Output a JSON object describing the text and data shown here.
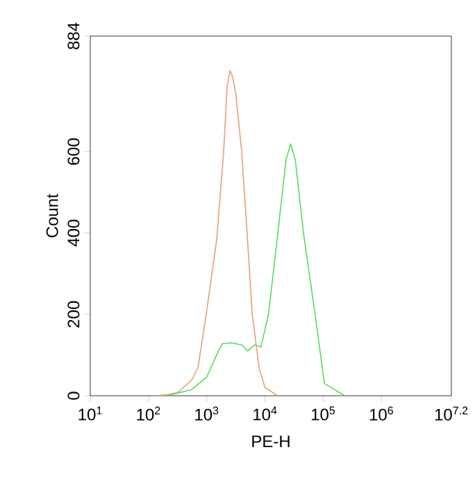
{
  "chart_data": {
    "type": "line",
    "xlabel": "PE-H",
    "ylabel": "Count",
    "log": "x",
    "marker": "none",
    "line_style": "solid",
    "xlim": [
      10,
      15848932
    ],
    "ylim": [
      0,
      884
    ],
    "xticks": [
      {
        "value": 10,
        "label": "10$^{1}$"
      },
      {
        "value": 100,
        "label": "10$^{2}$"
      },
      {
        "value": 1000,
        "label": "10$^{3}$"
      },
      {
        "value": 10000,
        "label": "10$^{4}$"
      },
      {
        "value": 100000,
        "label": "10$^{5}$"
      },
      {
        "value": 1000000,
        "label": "10$^{6}$"
      },
      {
        "value": 15848932,
        "label": "10$^{7.2}$"
      }
    ],
    "yticks": [
      0,
      200,
      400,
      600,
      884
    ],
    "series": [
      {
        "color": "#e8a070",
        "x": [
          117,
          200,
          316,
          550,
          708,
          977,
          1479,
          1950,
          2240,
          2512,
          2818,
          3162,
          3981,
          5012,
          6026,
          7943,
          10000,
          16600
        ],
        "values": [
          0,
          2,
          8,
          38,
          70,
          200,
          383,
          600,
          760,
          800,
          780,
          740,
          600,
          383,
          200,
          68,
          20,
          0
        ]
      },
      {
        "color": "#55dd55",
        "x": [
          204,
          550,
          1000,
          1585,
          1862,
          2692,
          3981,
          5012,
          6607,
          8511,
          11480,
          16600,
          22900,
          27540,
          33110,
          45710,
          72440,
          104700,
          234400
        ],
        "values": [
          0,
          15,
          46,
          110,
          128,
          130,
          125,
          110,
          125,
          120,
          200,
          400,
          580,
          619,
          580,
          400,
          200,
          30,
          0
        ]
      }
    ]
  }
}
